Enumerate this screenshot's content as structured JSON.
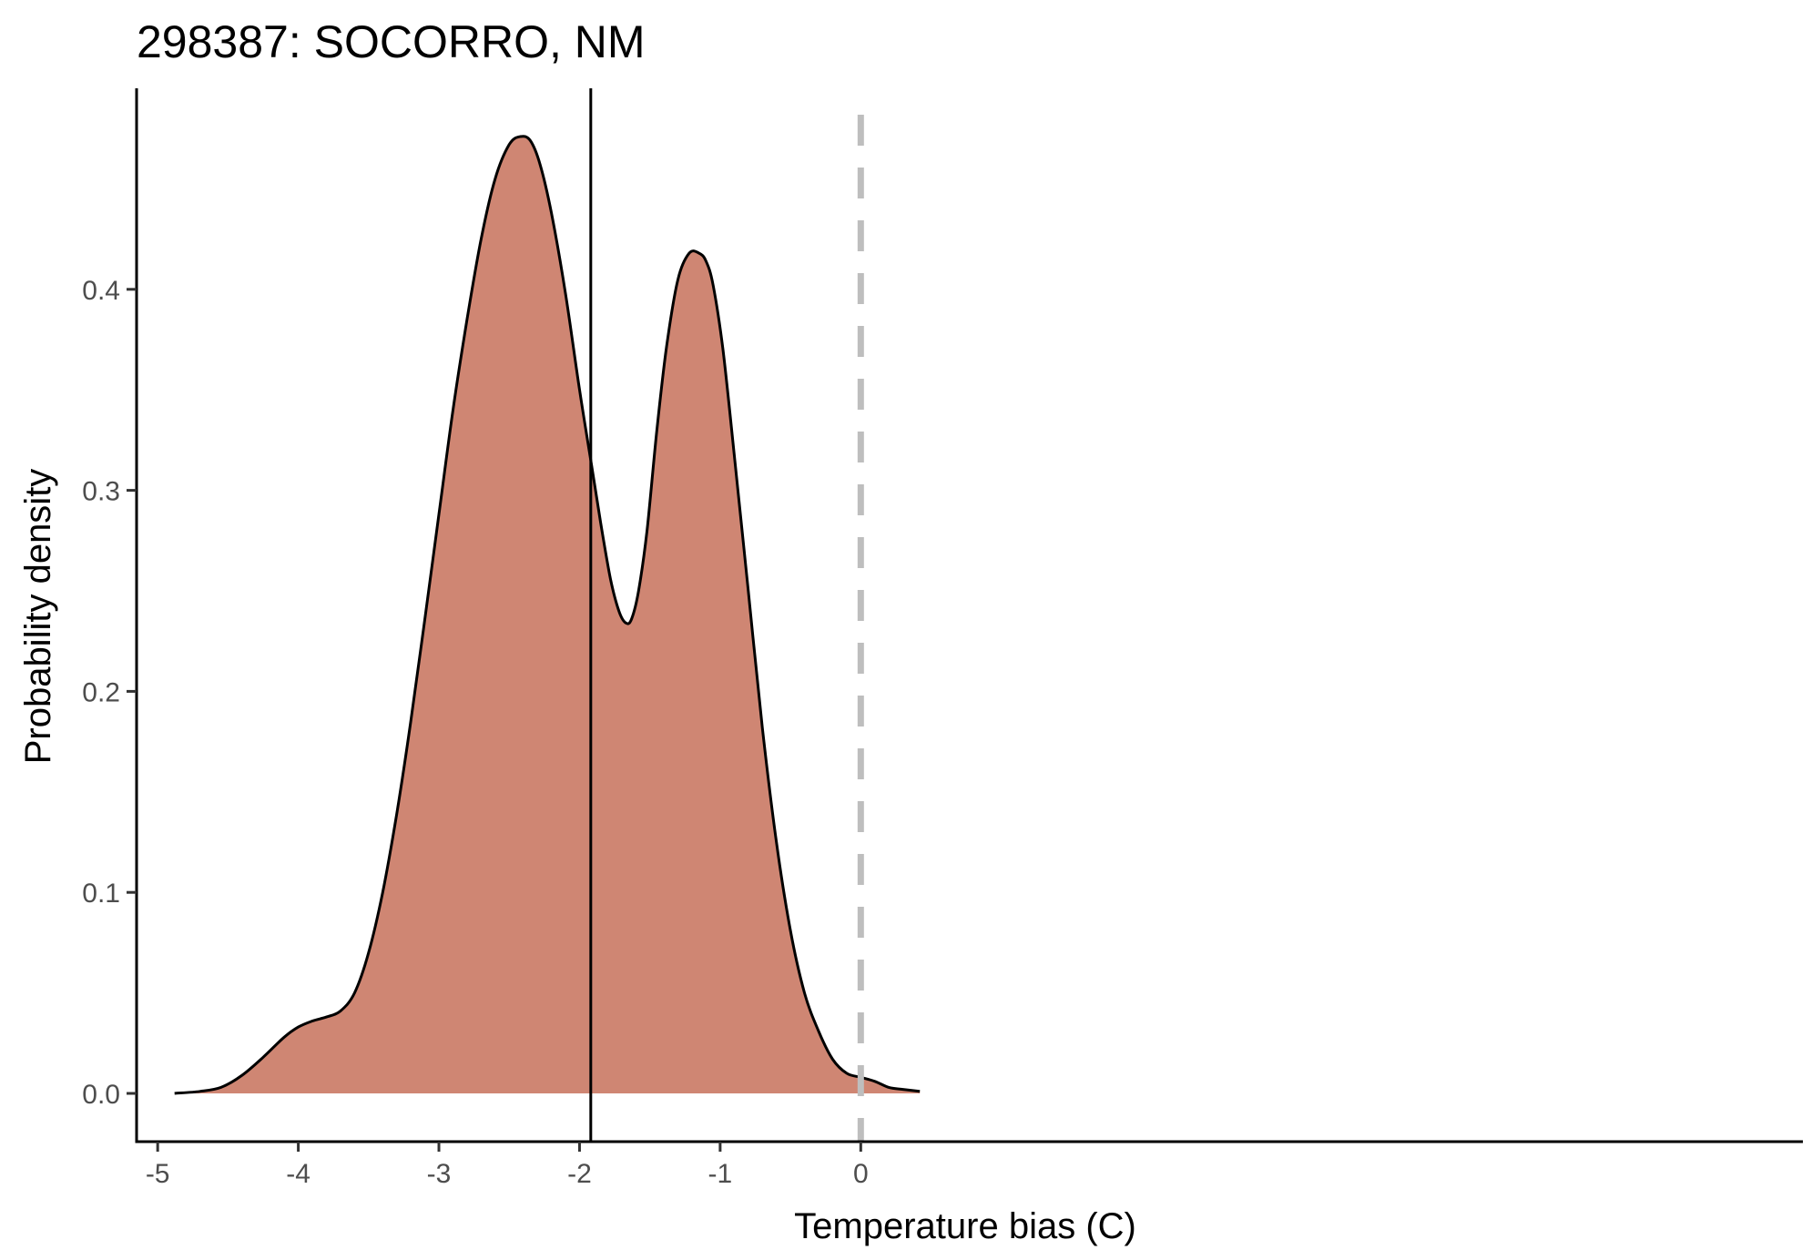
{
  "chart_data": {
    "type": "area",
    "title": "298387: SOCORRO, NM",
    "xlabel": "Temperature bias (C)",
    "ylabel": "Probability density",
    "xlim": [
      -5.15,
      6.7
    ],
    "ylim": [
      -0.024,
      0.5
    ],
    "xticks": [
      -5,
      -4,
      -3,
      -2,
      -1,
      0
    ],
    "xtick_labels": [
      "-5",
      "-4",
      "-3",
      "-2",
      "-1",
      "0"
    ],
    "yticks": [
      0.0,
      0.1,
      0.2,
      0.3,
      0.4
    ],
    "ytick_labels": [
      "0.0",
      "0.1",
      "0.2",
      "0.3",
      "0.4"
    ],
    "grid": false,
    "series": [
      {
        "fill": "#cf8673",
        "line_color": "#000000",
        "x": [
          -4.88,
          -4.7,
          -4.55,
          -4.4,
          -4.25,
          -4.1,
          -4.0,
          -3.9,
          -3.8,
          -3.7,
          -3.6,
          -3.5,
          -3.4,
          -3.3,
          -3.2,
          -3.1,
          -3.0,
          -2.9,
          -2.8,
          -2.7,
          -2.6,
          -2.5,
          -2.42,
          -2.35,
          -2.28,
          -2.2,
          -2.1,
          -2.0,
          -1.92,
          -1.85,
          -1.78,
          -1.72,
          -1.67,
          -1.63,
          -1.58,
          -1.52,
          -1.45,
          -1.38,
          -1.3,
          -1.22,
          -1.15,
          -1.1,
          -1.05,
          -0.98,
          -0.9,
          -0.8,
          -0.7,
          -0.6,
          -0.5,
          -0.4,
          -0.3,
          -0.2,
          -0.1,
          0.0,
          0.1,
          0.2,
          0.3,
          0.42
        ],
        "y": [
          0.0,
          0.001,
          0.003,
          0.009,
          0.018,
          0.028,
          0.033,
          0.036,
          0.038,
          0.041,
          0.05,
          0.07,
          0.1,
          0.139,
          0.185,
          0.236,
          0.288,
          0.34,
          0.385,
          0.425,
          0.455,
          0.472,
          0.476,
          0.474,
          0.462,
          0.438,
          0.398,
          0.35,
          0.315,
          0.284,
          0.256,
          0.24,
          0.234,
          0.236,
          0.25,
          0.28,
          0.33,
          0.372,
          0.405,
          0.418,
          0.418,
          0.414,
          0.402,
          0.37,
          0.318,
          0.25,
          0.182,
          0.125,
          0.081,
          0.05,
          0.031,
          0.017,
          0.01,
          0.008,
          0.006,
          0.003,
          0.002,
          0.001
        ]
      }
    ],
    "annotations": [
      {
        "type": "vertical-line",
        "x": -1.92,
        "style": "solid",
        "color": "#000000"
      },
      {
        "type": "vertical-line",
        "x": 0.0,
        "style": "dashed",
        "color": "#bebebe"
      }
    ]
  }
}
